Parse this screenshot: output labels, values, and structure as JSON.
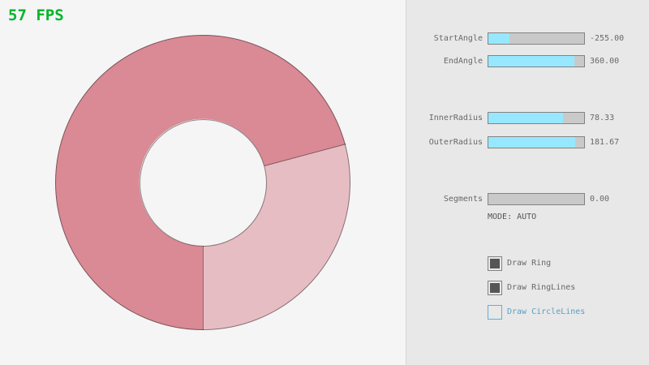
{
  "fps_label": "57 FPS",
  "colors": {
    "fps_green": "#00b42a",
    "accent": "#97e8ff",
    "slider_track": "#c9c9c9",
    "slider_border": "#838383",
    "text": "#686868",
    "focus_border": "#5bb2d9",
    "focus_text": "#5b9fc4",
    "ring_line": "rgba(0,0,0,0.42)"
  },
  "ring": {
    "color_overlap": "#d98a95",
    "color_single": "#e7bdc4",
    "boundary_start_deg": 75,
    "boundary_end_deg": 180,
    "start_angle": "-255.00",
    "end_angle": "360.00",
    "inner_radius": "78.33",
    "outer_radius": "181.67"
  },
  "panel": {
    "sliders": [
      {
        "label": "StartAngle",
        "value": "-255.00",
        "fill_pct": 21.7
      },
      {
        "label": "EndAngle",
        "value": "360.00",
        "fill_pct": 90.0
      },
      {
        "label": "InnerRadius",
        "value": "78.33",
        "fill_pct": 78.3
      },
      {
        "label": "OuterRadius",
        "value": "181.67",
        "fill_pct": 90.8
      },
      {
        "label": "Segments",
        "value": "0.00",
        "fill_pct": 0
      }
    ],
    "mode_text": "MODE: AUTO",
    "checkboxes": [
      {
        "label": "Draw Ring",
        "checked": true
      },
      {
        "label": "Draw RingLines",
        "checked": true
      },
      {
        "label": "Draw CircleLines",
        "checked": false
      }
    ]
  }
}
